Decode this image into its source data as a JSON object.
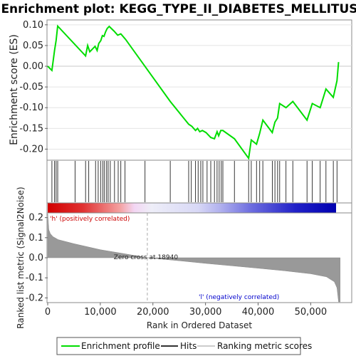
{
  "chart_data": [
    {
      "type": "line",
      "title": "Enrichment plot: KEGG_TYPE_II_DIABETES_MELLITUS",
      "ylabel": "Enrichment score (ES)",
      "ylim": [
        -0.225,
        0.11
      ],
      "yticks": [
        0.1,
        0.05,
        0.0,
        -0.05,
        -0.1,
        -0.15,
        -0.2
      ],
      "ytick_labels": [
        "0.10",
        "0.05",
        "0.00",
        "-0.05",
        "-0.10",
        "-0.15",
        "-0.20"
      ],
      "grid": true,
      "series": [
        {
          "name": "Enrichment profile",
          "color": "#00dd00",
          "x": [
            0,
            800,
            1300,
            1600,
            1900,
            7200,
            7600,
            8000,
            9000,
            9400,
            9700,
            10100,
            10400,
            10700,
            11000,
            11300,
            11700,
            12600,
            13300,
            13900,
            14800,
            23300,
            26800,
            27400,
            28100,
            28500,
            28900,
            29400,
            30100,
            31000,
            31700,
            32200,
            32500,
            32900,
            33300,
            35500,
            38200,
            38700,
            39700,
            40300,
            40900,
            42700,
            43200,
            43700,
            44100,
            45300,
            46600,
            49300,
            50300,
            51800,
            52900,
            54300,
            55000,
            55300
          ],
          "y": [
            0.0,
            -0.01,
            0.038,
            0.062,
            0.097,
            0.025,
            0.05,
            0.035,
            0.048,
            0.038,
            0.055,
            0.062,
            0.074,
            0.072,
            0.083,
            0.091,
            0.096,
            0.085,
            0.075,
            0.078,
            0.065,
            -0.085,
            -0.14,
            -0.145,
            -0.155,
            -0.15,
            -0.158,
            -0.155,
            -0.16,
            -0.172,
            -0.175,
            -0.158,
            -0.168,
            -0.155,
            -0.155,
            -0.175,
            -0.222,
            -0.178,
            -0.188,
            -0.162,
            -0.13,
            -0.16,
            -0.135,
            -0.125,
            -0.09,
            -0.1,
            -0.085,
            -0.13,
            -0.09,
            -0.1,
            -0.055,
            -0.075,
            -0.035,
            0.01
          ]
        }
      ],
      "hits_x": [
        800,
        1300,
        1600,
        1900,
        5200,
        7200,
        7800,
        9100,
        9600,
        10100,
        10500,
        10800,
        11200,
        11500,
        11900,
        12700,
        13400,
        13900,
        14700,
        18500,
        23300,
        26800,
        27300,
        28100,
        28600,
        29100,
        29500,
        30300,
        31000,
        31700,
        32200,
        32600,
        33000,
        33300,
        35500,
        38200,
        38700,
        39700,
        40300,
        40900,
        42700,
        43200,
        43700,
        44100,
        45300,
        46600,
        49300,
        50300,
        51800,
        52900,
        54300,
        55000
      ]
    },
    {
      "type": "area",
      "xlabel": "Rank in Ordered Dataset",
      "ylabel": "Ranked list metric (Signal2Noise)",
      "ylim": [
        -0.22,
        0.22
      ],
      "yticks": [
        0.2,
        0.1,
        0.0,
        -0.1,
        -0.2
      ],
      "ytick_labels": [
        "0.2",
        "0.1",
        "0.0",
        "-0.1",
        "-0.2"
      ],
      "xlim": [
        0,
        57800
      ],
      "xticks": [
        0,
        10000,
        20000,
        30000,
        40000,
        50000
      ],
      "xtick_labels": [
        "0",
        "10,000",
        "20,000",
        "30,000",
        "40,000",
        "50,000"
      ],
      "series": [
        {
          "name": "Ranking metric scores",
          "color": "#999999",
          "x": [
            0,
            200,
            500,
            1000,
            2000,
            5000,
            10000,
            15000,
            18940,
            25000,
            30000,
            35000,
            40000,
            45000,
            50000,
            53000,
            54500,
            55000,
            55300,
            55600
          ],
          "y": [
            0.22,
            0.14,
            0.12,
            0.105,
            0.09,
            0.07,
            0.04,
            0.018,
            0.0,
            -0.015,
            -0.028,
            -0.04,
            -0.052,
            -0.065,
            -0.08,
            -0.095,
            -0.12,
            -0.15,
            -0.22,
            -0.22
          ]
        }
      ],
      "annotations": [
        {
          "text": "Zero cross at 18940",
          "x": 18940,
          "y": 0.0
        },
        {
          "text": "'h' (positively correlated)",
          "color": "#cc0000"
        },
        {
          "text": "'l' (negatively correlated)",
          "color": "#0000cc"
        }
      ]
    }
  ],
  "legend": {
    "placement": "bottom",
    "items": [
      {
        "label": "Enrichment profile",
        "color": "#00dd00"
      },
      {
        "label": "Hits",
        "color": "#333333"
      },
      {
        "label": "Ranking metric scores",
        "color": "#cccccc"
      }
    ]
  }
}
